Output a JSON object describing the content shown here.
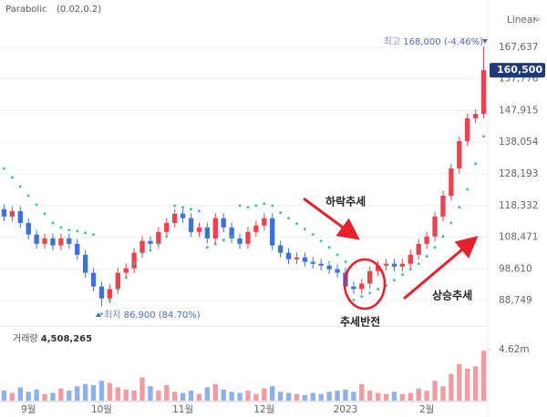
{
  "chart_data": {
    "type": "candlestick",
    "indicator": "Parabolic",
    "indicator_params": "(0.02,0.2)",
    "scale": "Linear",
    "categories": [
      null,
      null,
      null,
      "9월",
      null,
      null,
      null,
      null,
      null,
      null,
      null,
      null,
      "10월",
      null,
      null,
      null,
      null,
      null,
      null,
      null,
      null,
      null,
      "11월",
      null,
      null,
      null,
      null,
      null,
      null,
      null,
      null,
      null,
      "12월",
      null,
      null,
      null,
      null,
      null,
      null,
      null,
      null,
      null,
      "2023",
      null,
      null,
      null,
      null,
      null,
      null,
      null,
      null,
      null,
      "2월",
      null,
      null,
      null,
      null,
      null,
      null,
      null
    ],
    "open": [
      117200,
      114900,
      116600,
      112900,
      109300,
      106400,
      108100,
      105900,
      108100,
      106400,
      103000,
      97400,
      93100,
      89400,
      92300,
      97400,
      98800,
      103600,
      107300,
      106400,
      110100,
      112900,
      115800,
      114400,
      110100,
      111500,
      108100,
      114400,
      111500,
      108100,
      106400,
      110100,
      112100,
      114400,
      105900,
      103600,
      101600,
      102200,
      100800,
      100200,
      99600,
      98500,
      97400,
      93100,
      92300,
      94000,
      97900,
      99600,
      100200,
      99300,
      100200,
      103000,
      106400,
      108700,
      114900,
      121400,
      129900,
      138400,
      145500,
      146900
    ],
    "high": [
      118700,
      118100,
      118100,
      114400,
      110800,
      109600,
      109600,
      109600,
      109600,
      107900,
      104500,
      98900,
      94600,
      93800,
      98900,
      100300,
      105100,
      108800,
      108800,
      111600,
      114400,
      117300,
      117300,
      115900,
      113000,
      113000,
      115900,
      115900,
      113000,
      109600,
      111600,
      113600,
      115900,
      115900,
      107400,
      105100,
      103700,
      103700,
      102300,
      101700,
      101100,
      100000,
      98900,
      94600,
      95500,
      99400,
      101100,
      101700,
      101700,
      101700,
      104500,
      107900,
      110200,
      116400,
      122900,
      131400,
      139900,
      147000,
      148400,
      168000
    ],
    "low": [
      113400,
      113400,
      111400,
      107800,
      104900,
      104900,
      104400,
      104400,
      104900,
      101500,
      95900,
      91600,
      86900,
      87900,
      90800,
      95900,
      97300,
      102100,
      104900,
      104900,
      108600,
      111400,
      112900,
      108600,
      108600,
      106600,
      106600,
      110000,
      106600,
      104900,
      104900,
      108600,
      110600,
      104400,
      102100,
      100100,
      100100,
      99300,
      98700,
      98100,
      97000,
      95900,
      91600,
      90800,
      90800,
      92500,
      96400,
      98100,
      97800,
      97800,
      98700,
      101500,
      104900,
      107200,
      113400,
      119900,
      128400,
      136900,
      144000,
      145400
    ],
    "close": [
      114900,
      116600,
      112900,
      109300,
      106400,
      108100,
      105900,
      108100,
      106400,
      103000,
      97400,
      93100,
      89400,
      92300,
      97400,
      98800,
      103600,
      107300,
      106400,
      110100,
      112900,
      115800,
      114400,
      110100,
      111500,
      108100,
      114400,
      111500,
      108100,
      106400,
      110100,
      112100,
      114400,
      105900,
      103600,
      101600,
      102200,
      100800,
      100200,
      99600,
      98500,
      97400,
      93100,
      92300,
      94000,
      97900,
      99600,
      100200,
      99300,
      100200,
      103000,
      106400,
      108700,
      114900,
      121400,
      129900,
      138400,
      145500,
      146900,
      160500
    ],
    "up_color": "#e8434f",
    "down_color": "#3f72d8",
    "sar": {
      "color": "#2fc48d",
      "values": [
        129900,
        127100,
        124300,
        121400,
        118600,
        115800,
        112900,
        111500,
        110700,
        110400,
        109800,
        109300,
        84600,
        88900,
        92300,
        95900,
        100200,
        103600,
        104400,
        106400,
        108700,
        118300,
        117800,
        117200,
        116600,
        105300,
        106400,
        107600,
        108700,
        118300,
        117800,
        118300,
        118900,
        118300,
        116100,
        114400,
        112700,
        111000,
        109300,
        107300,
        105300,
        103000,
        100800,
        88900,
        90000,
        91100,
        92300,
        93400,
        95100,
        96800,
        98500,
        100200,
        102500,
        105300,
        108700,
        112900,
        117800,
        123400,
        131400,
        139900
      ]
    },
    "ylim": [
      81665,
      173871
    ],
    "yticks": [
      {
        "value": 88749,
        "label": "88,749"
      },
      {
        "value": 98610,
        "label": "98,610"
      },
      {
        "value": 108471,
        "label": "108,471"
      },
      {
        "value": 118332,
        "label": "118,332"
      },
      {
        "value": 128193,
        "label": "128,193"
      },
      {
        "value": 138054,
        "label": "138,054"
      },
      {
        "value": 147915,
        "label": "147,915"
      },
      {
        "value": 157776,
        "label": "157,776"
      },
      {
        "value": 167637,
        "label": "167,637"
      }
    ],
    "grid": true,
    "last_price_label": "160,500",
    "max_annotation": {
      "label": "최고",
      "text": "168,000 (-4.46%)"
    },
    "min_annotation": {
      "label": "최저",
      "text": "86,900 (84.70%)"
    },
    "annotations": [
      "하락추세",
      "추세반전",
      "상승추세"
    ],
    "volume": {
      "title": "거래량",
      "last_label": "4,508,265",
      "up_color": "#f29ba2",
      "down_color": "#8eb0ec",
      "values": [
        900000,
        700000,
        1200000,
        800000,
        1000000,
        600000,
        700000,
        1100000,
        900000,
        1300000,
        1500000,
        1400000,
        1800000,
        1600000,
        1200000,
        1000000,
        900000,
        2100000,
        1300000,
        900000,
        1400000,
        800000,
        700000,
        900000,
        600000,
        1200000,
        1500000,
        1000000,
        800000,
        700000,
        900000,
        600000,
        1100000,
        1300000,
        800000,
        700000,
        600000,
        500000,
        700000,
        600000,
        800000,
        900000,
        1000000,
        800000,
        1500000,
        900000,
        700000,
        600000,
        800000,
        600000,
        700000,
        1100000,
        900000,
        1800000,
        1300000,
        2400000,
        3300000,
        2900000,
        3100000,
        4508265
      ],
      "ylim": [
        0,
        5775000
      ],
      "yticks": [
        {
          "value": 4620000,
          "label": "4.62m"
        }
      ]
    }
  }
}
